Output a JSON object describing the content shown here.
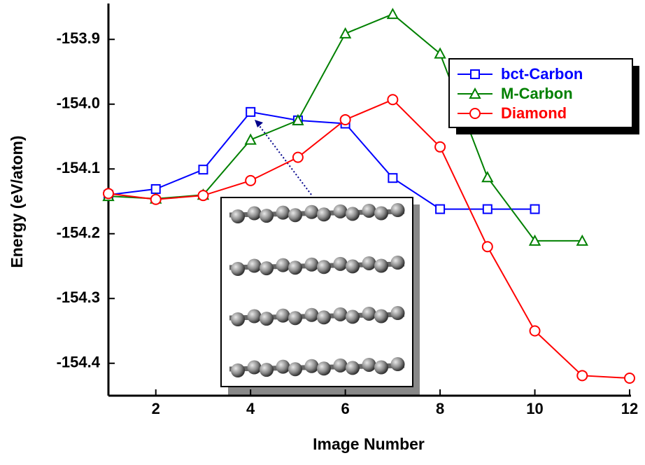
{
  "chart_data": {
    "type": "line",
    "x_label": "Image Number",
    "y_label": "Energy (eV/atom)",
    "xlim": [
      1,
      12
    ],
    "xticks": [
      2,
      4,
      6,
      8,
      10,
      12
    ],
    "ylim": [
      -154.45,
      -153.85
    ],
    "yticks": [
      -153.9,
      {
        "value": -154.0,
        "label": "-154.0"
      },
      -154.1,
      -154.2,
      -154.3,
      -154.4
    ],
    "legend": "upper right",
    "series": [
      {
        "name": "bct-Carbon",
        "color": "#0000ff",
        "marker": "square",
        "x": [
          1,
          2,
          3,
          4,
          5,
          6,
          7,
          8,
          9,
          10
        ],
        "values": [
          -154.14,
          -154.131,
          -154.101,
          -154.012,
          -154.025,
          -154.03,
          -154.114,
          -154.162,
          -154.162,
          -154.162
        ]
      },
      {
        "name": "M-Carbon",
        "color": "#008000",
        "marker": "triangle",
        "x": [
          1,
          2,
          3,
          4,
          5,
          6,
          7,
          8,
          9,
          10,
          11
        ],
        "values": [
          -154.142,
          -154.146,
          -154.14,
          -154.055,
          -154.025,
          -153.891,
          -153.861,
          -153.922,
          -154.113,
          -154.211,
          -154.211
        ]
      },
      {
        "name": "Diamond",
        "color": "#ff0000",
        "marker": "circle",
        "x": [
          1,
          2,
          3,
          4,
          5,
          6,
          7,
          8,
          9,
          10,
          11,
          12
        ],
        "values": [
          -154.138,
          -154.147,
          -154.141,
          -154.118,
          -154.082,
          -154.024,
          -153.993,
          -154.066,
          -154.22,
          -154.35,
          -154.419,
          -154.423
        ]
      }
    ]
  }
}
